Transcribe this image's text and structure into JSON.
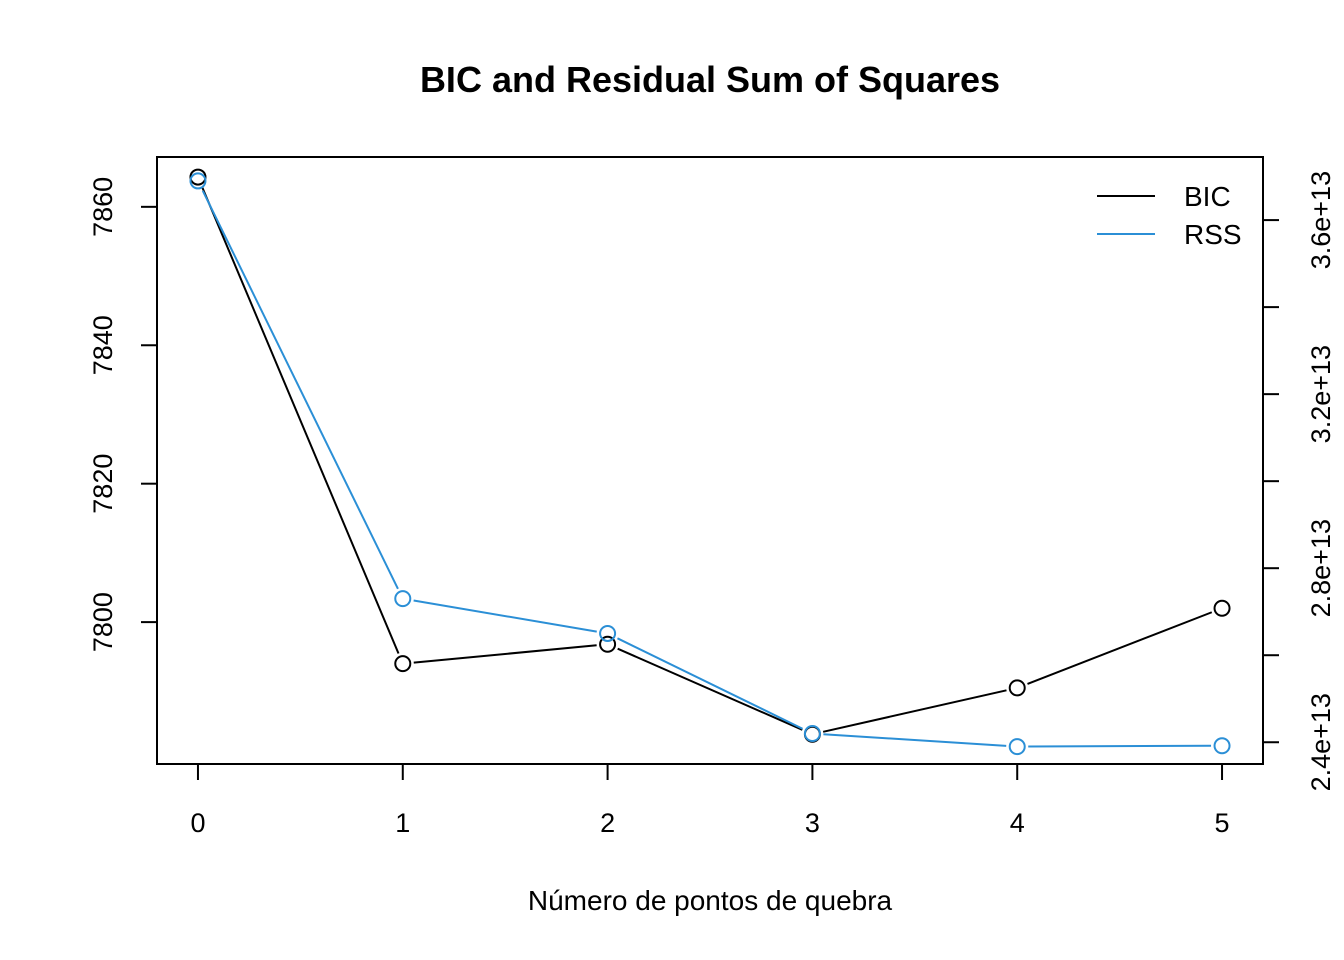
{
  "chart_data": {
    "type": "line",
    "title": "BIC and Residual Sum of Squares",
    "xlabel": "Número de pontos de quebra",
    "ylabel": "",
    "ylabel_right": "",
    "x": [
      0,
      1,
      2,
      3,
      4,
      5
    ],
    "x_tick_labels": [
      "0",
      "1",
      "2",
      "3",
      "4",
      "5"
    ],
    "xlim": [
      -0.2,
      5.2
    ],
    "ylim_left": [
      7779.5,
      7867.2
    ],
    "y_left_ticks": [
      7800,
      7820,
      7840,
      7860
    ],
    "y_left_tick_labels": [
      "7800",
      "7820",
      "7840",
      "7860"
    ],
    "ylim_right": [
      23500000000000.0,
      37450000000000.0
    ],
    "y_right_ticks": [
      24000000000000.0,
      26000000000000.0,
      28000000000000.0,
      30000000000000.0,
      32000000000000.0,
      34000000000000.0,
      36000000000000.0
    ],
    "y_right_tick_labels": [
      "2.4e+13",
      "",
      "2.8e+13",
      "",
      "3.2e+13",
      "",
      "3.6e+13"
    ],
    "series": [
      {
        "name": "BIC",
        "axis": "left",
        "color": "#000000",
        "values": [
          7864.3,
          7794.0,
          7796.8,
          7783.8,
          7790.5,
          7802.0
        ]
      },
      {
        "name": "RSS",
        "axis": "right",
        "color": "#2b8fd6",
        "values": [
          36900000000000.0,
          27300000000000.0,
          26500000000000.0,
          24200000000000.0,
          23900000000000.0,
          23920000000000.0
        ]
      }
    ],
    "legend_position": "top-right",
    "grid": false
  }
}
